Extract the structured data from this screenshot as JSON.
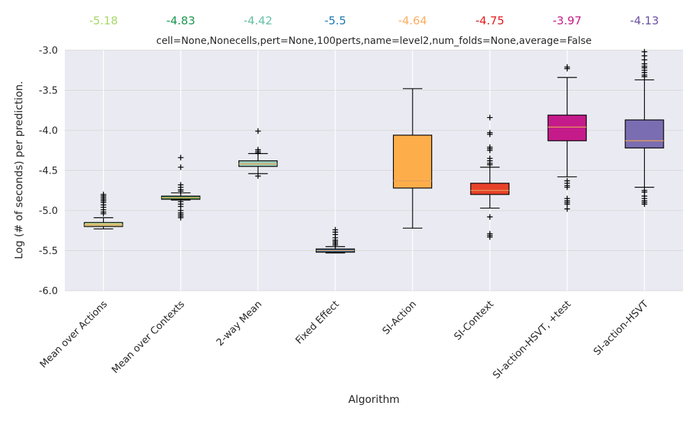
{
  "chart_data": {
    "type": "box",
    "title": "cell=None,Nonecells,pert=None,100perts,name=level2,num_folds=None,average=False",
    "xlabel": "Algorithm",
    "ylabel": "Log (# of seconds) per prediction.",
    "ylim": [
      -6.0,
      -3.0
    ],
    "yticks": [
      "-6.0",
      "-5.5",
      "-5.0",
      "-4.5",
      "-4.0",
      "-3.5",
      "-3.0"
    ],
    "grid": true,
    "categories": [
      "Mean over Actions",
      "Mean over Contexts",
      "2-way Mean",
      "Fixed Effect",
      "SI-Action",
      "SI-Context",
      "SI-action-HSVT, +test",
      "SI-action-HSVT"
    ],
    "mean_labels": [
      "-5.18",
      "-4.83",
      "-4.42",
      "-5.5",
      "-4.64",
      "-4.75",
      "-3.97",
      "-4.13"
    ],
    "label_colors": [
      "#a6d96a",
      "#1a9850",
      "#66c2a5",
      "#1f78b4",
      "#fdae61",
      "#e31a1c",
      "#c51b8a",
      "#6a51a3"
    ],
    "box_colors": [
      "#c8d98f",
      "#4a9d5e",
      "#9bcfb9",
      "#3f6fa0",
      "#fdae4b",
      "#e8412a",
      "#c51b8a",
      "#7b6db1"
    ],
    "boxes": [
      {
        "whislo": -5.23,
        "q1": -5.2,
        "med": -5.18,
        "q3": -5.15,
        "whishi": -5.09,
        "fliers": [
          -4.8,
          -4.82,
          -4.84,
          -4.86,
          -4.88,
          -4.9,
          -4.93,
          -4.96,
          -4.99,
          -5.02,
          -5.04
        ]
      },
      {
        "whislo": -4.87,
        "q1": -4.86,
        "med": -4.84,
        "q3": -4.82,
        "whishi": -4.78,
        "fliers": [
          -4.34,
          -4.46,
          -4.68,
          -4.71,
          -4.74,
          -4.76,
          -4.89,
          -4.92,
          -4.95,
          -5.0,
          -5.03,
          -5.05,
          -5.07,
          -5.09
        ]
      },
      {
        "whislo": -4.54,
        "q1": -4.45,
        "med": -4.42,
        "q3": -4.38,
        "whishi": -4.29,
        "fliers": [
          -4.01,
          -4.24,
          -4.26,
          -4.28,
          -4.57
        ]
      },
      {
        "whislo": -5.53,
        "q1": -5.52,
        "med": -5.5,
        "q3": -5.48,
        "whishi": -5.45,
        "fliers": [
          -5.24,
          -5.27,
          -5.3,
          -5.34,
          -5.37,
          -5.39,
          -5.41,
          -5.43
        ]
      },
      {
        "whislo": -5.22,
        "q1": -4.72,
        "med": -4.63,
        "q3": -4.06,
        "whishi": -3.48,
        "fliers": []
      },
      {
        "whislo": -4.97,
        "q1": -4.8,
        "med": -4.75,
        "q3": -4.66,
        "whishi": -4.46,
        "fliers": [
          -3.84,
          -4.03,
          -4.05,
          -4.21,
          -4.23,
          -4.25,
          -4.35,
          -4.38,
          -4.41,
          -4.43,
          -5.08,
          -5.29,
          -5.31,
          -5.33
        ]
      },
      {
        "whislo": -4.58,
        "q1": -4.13,
        "med": -3.96,
        "q3": -3.81,
        "whishi": -3.34,
        "fliers": [
          -3.21,
          -3.23,
          -4.63,
          -4.66,
          -4.69,
          -4.71,
          -4.85,
          -4.88,
          -4.9,
          -4.92,
          -4.98
        ]
      },
      {
        "whislo": -4.71,
        "q1": -4.22,
        "med": -4.13,
        "q3": -3.87,
        "whishi": -3.37,
        "fliers": [
          -3.02,
          -3.07,
          -3.12,
          -3.17,
          -3.2,
          -3.22,
          -3.25,
          -3.28,
          -3.31,
          -3.33,
          -4.75,
          -4.77,
          -4.82,
          -4.85,
          -4.88,
          -4.9,
          -4.92
        ]
      }
    ]
  }
}
